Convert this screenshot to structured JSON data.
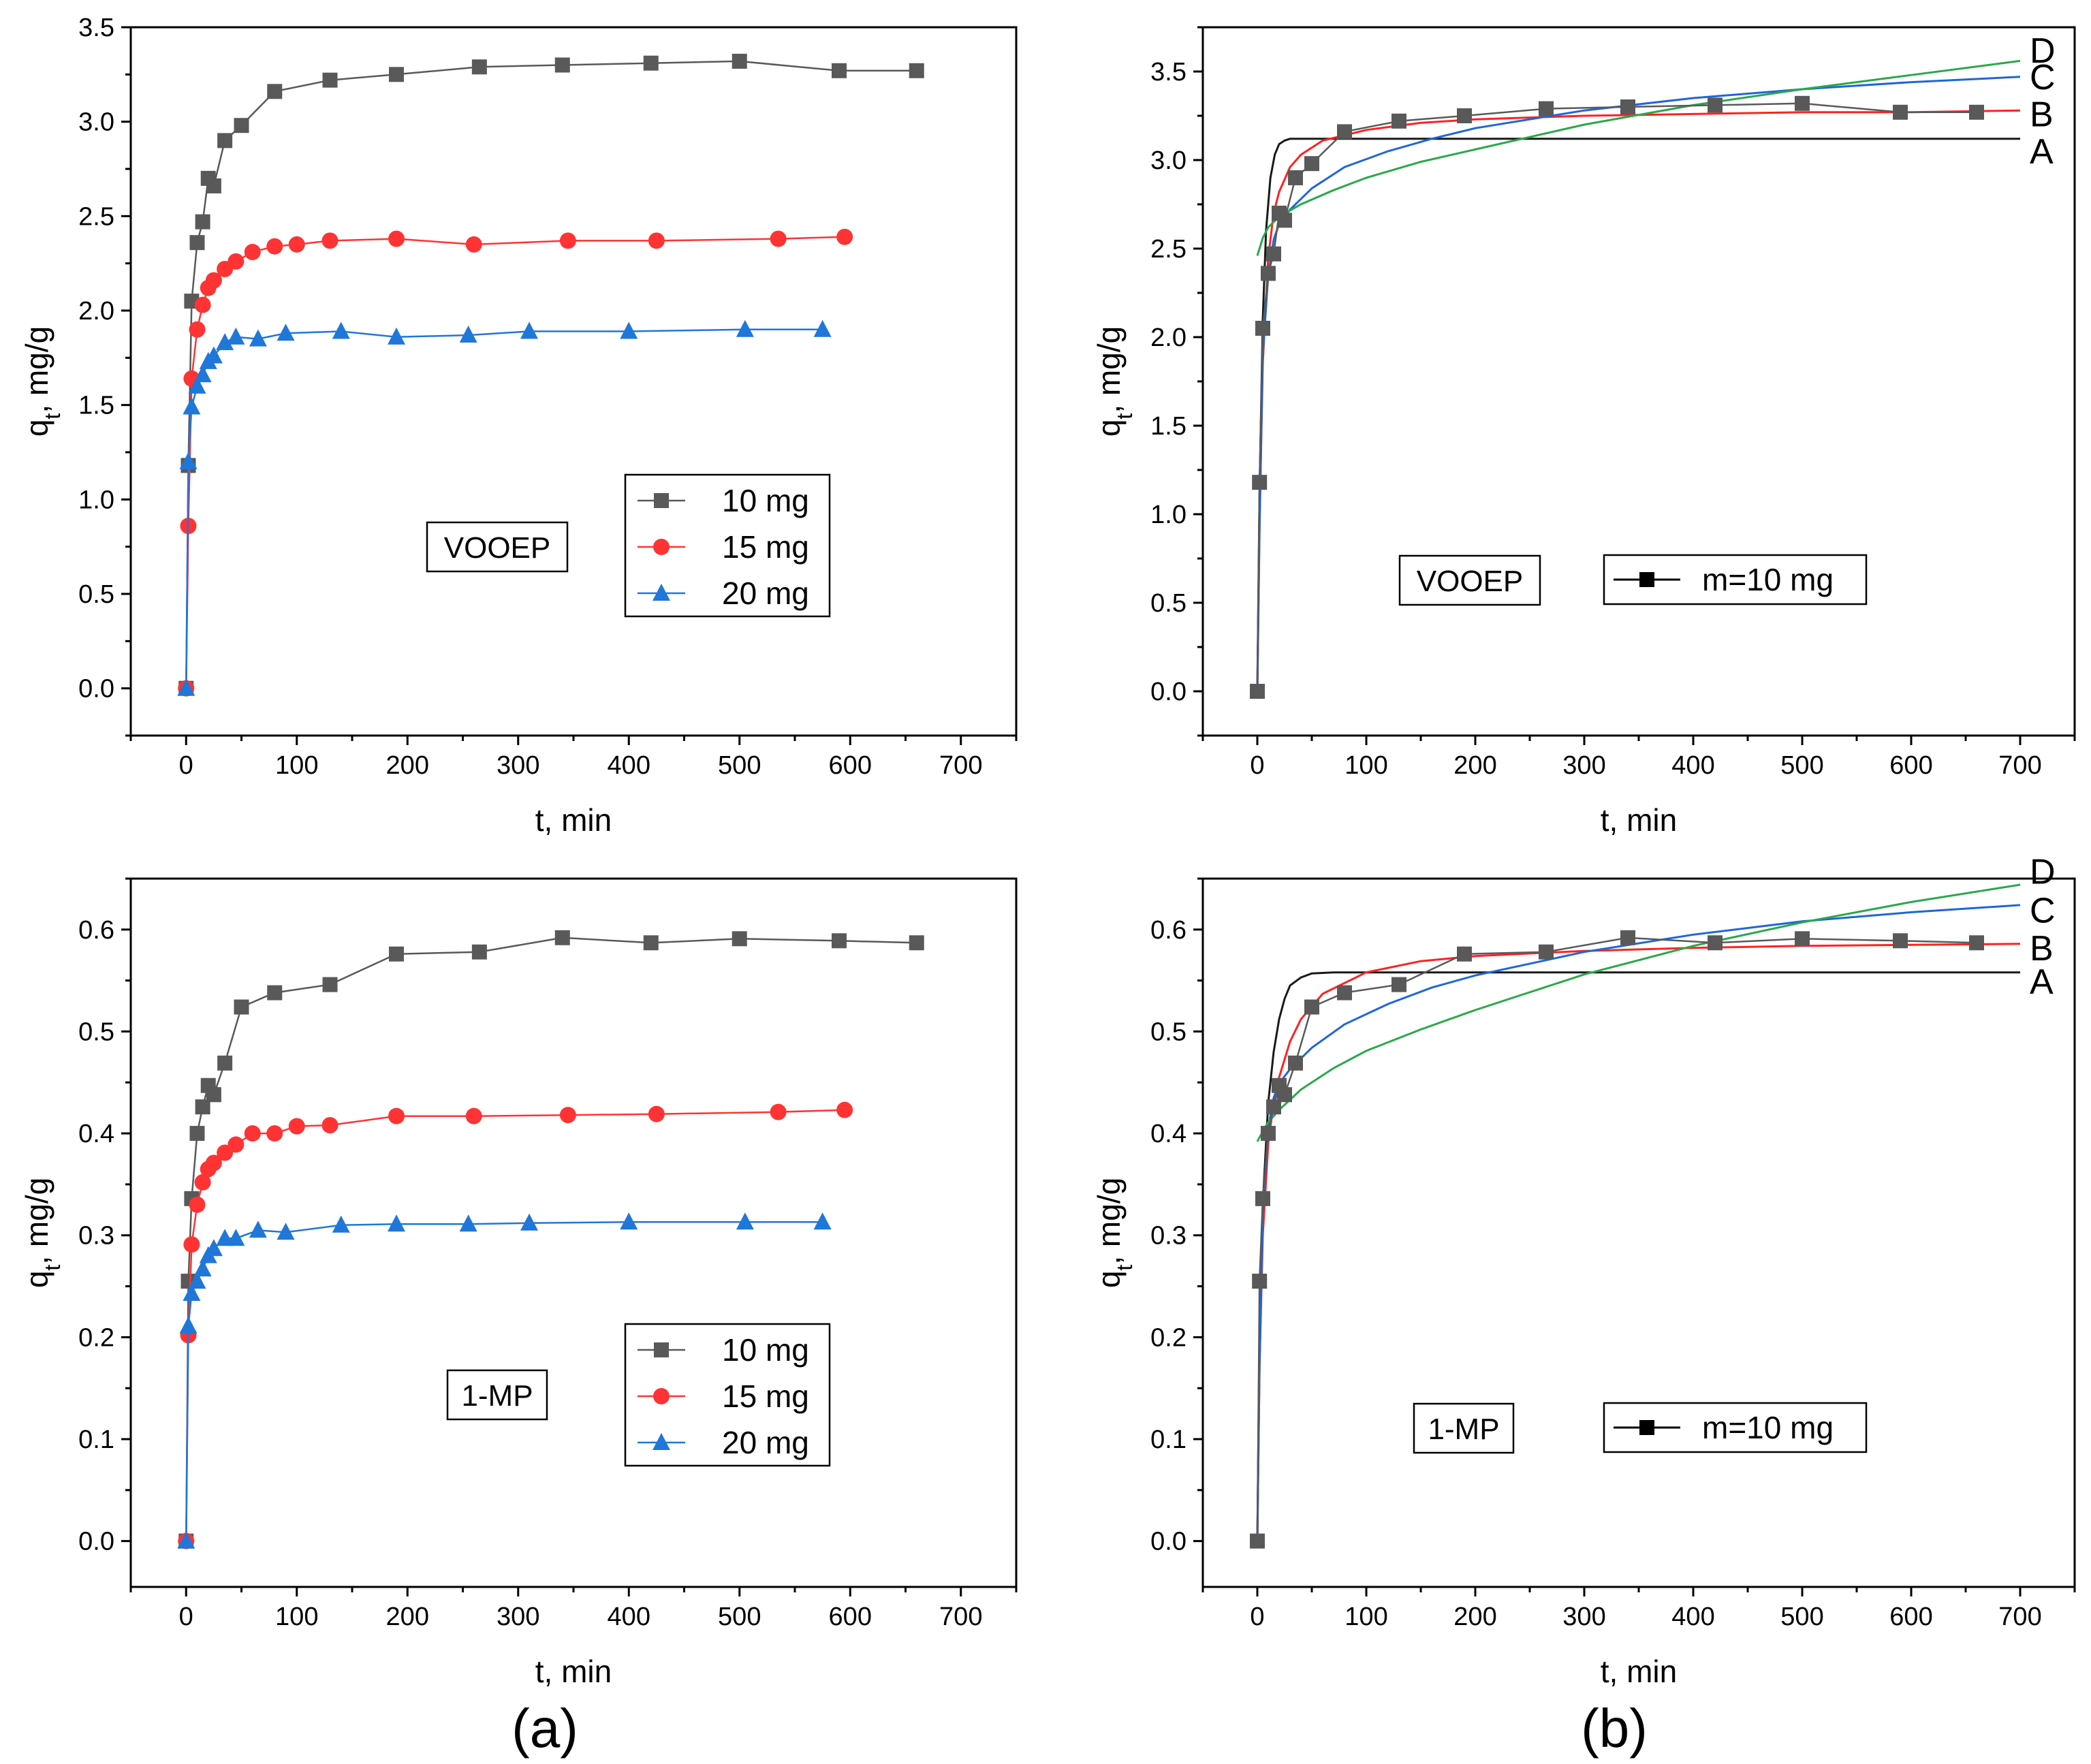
{
  "figure": {
    "panel_labels": [
      "(a)",
      "(b)"
    ]
  },
  "chart_data": [
    {
      "id": "a-top",
      "type": "line",
      "xlabel": "t, min",
      "ylabel_main": "q",
      "ylabel_sub": "t",
      "ylabel_tail": ", mg/g",
      "xlim": [
        -50,
        750
      ],
      "ylim": [
        -0.25,
        3.5
      ],
      "xticks": [
        0,
        100,
        200,
        300,
        400,
        500,
        600,
        700
      ],
      "yticks": [
        0.0,
        0.5,
        1.0,
        1.5,
        2.0,
        2.5,
        3.0,
        3.5
      ],
      "ytick_labels": [
        "0.0",
        "0.5",
        "1.0",
        "1.5",
        "2.0",
        "2.5",
        "3.0",
        "3.5"
      ],
      "annotation": "VOOEP",
      "series": [
        {
          "name": "10 mg",
          "color": "#595959",
          "marker": "square",
          "x": [
            0,
            2,
            5,
            10,
            15,
            20,
            25,
            35,
            50,
            80,
            130,
            190,
            265,
            340,
            420,
            500,
            590,
            660
          ],
          "y": [
            0,
            1.18,
            2.05,
            2.36,
            2.47,
            2.7,
            2.66,
            2.9,
            2.98,
            3.16,
            3.22,
            3.25,
            3.29,
            3.3,
            3.31,
            3.32,
            3.27,
            3.27
          ]
        },
        {
          "name": "15 mg",
          "color": "#ff3333",
          "marker": "circle",
          "x": [
            0,
            2,
            5,
            10,
            15,
            20,
            25,
            35,
            45,
            60,
            80,
            100,
            130,
            190,
            260,
            345,
            425,
            535,
            595
          ],
          "y": [
            0,
            0.86,
            1.64,
            1.9,
            2.03,
            2.12,
            2.16,
            2.22,
            2.26,
            2.31,
            2.34,
            2.35,
            2.37,
            2.38,
            2.35,
            2.37,
            2.37,
            2.38,
            2.39
          ]
        },
        {
          "name": "20 mg",
          "color": "#1f77d9",
          "marker": "triangle",
          "x": [
            0,
            2,
            5,
            10,
            15,
            20,
            25,
            35,
            45,
            65,
            90,
            140,
            190,
            255,
            310,
            400,
            505,
            575
          ],
          "y": [
            0,
            1.2,
            1.49,
            1.6,
            1.66,
            1.73,
            1.76,
            1.83,
            1.86,
            1.85,
            1.88,
            1.89,
            1.86,
            1.87,
            1.89,
            1.89,
            1.9,
            1.9
          ]
        }
      ]
    },
    {
      "id": "b-top",
      "type": "line",
      "xlabel": "t, min",
      "ylabel_main": "q",
      "ylabel_sub": "t",
      "ylabel_tail": ", mg/g",
      "xlim": [
        -50,
        750
      ],
      "ylim": [
        -0.25,
        3.75
      ],
      "xticks": [
        0,
        100,
        200,
        300,
        400,
        500,
        600,
        700
      ],
      "yticks": [
        0.0,
        0.5,
        1.0,
        1.5,
        2.0,
        2.5,
        3.0,
        3.5
      ],
      "ytick_labels": [
        "0.0",
        "0.5",
        "1.0",
        "1.5",
        "2.0",
        "2.5",
        "3.0",
        "3.5"
      ],
      "annotation": "VOOEP",
      "data_series": {
        "name": "m=10 mg",
        "color": "#595959",
        "marker": "square",
        "x": [
          0,
          2,
          5,
          10,
          15,
          20,
          25,
          35,
          50,
          80,
          130,
          190,
          265,
          340,
          420,
          500,
          590,
          660
        ],
        "y": [
          0,
          1.18,
          2.05,
          2.36,
          2.47,
          2.7,
          2.66,
          2.9,
          2.98,
          3.16,
          3.22,
          3.25,
          3.29,
          3.3,
          3.31,
          3.32,
          3.27,
          3.27
        ]
      },
      "model_curves": [
        {
          "label": "A",
          "color": "#1a1a1a",
          "x": [
            0,
            2,
            5,
            8,
            12,
            16,
            20,
            25,
            30,
            40,
            60,
            100,
            200,
            400,
            700
          ],
          "y": [
            0,
            1.1,
            2.1,
            2.6,
            2.9,
            3.03,
            3.09,
            3.11,
            3.12,
            3.12,
            3.12,
            3.12,
            3.12,
            3.12,
            3.12
          ],
          "label_y": 3.05
        },
        {
          "label": "B",
          "color": "#ff2222",
          "x": [
            0,
            2,
            5,
            10,
            15,
            20,
            30,
            40,
            60,
            100,
            150,
            200,
            300,
            400,
            500,
            600,
            700
          ],
          "y": [
            0,
            0.95,
            1.85,
            2.45,
            2.7,
            2.82,
            2.96,
            3.03,
            3.11,
            3.17,
            3.21,
            3.23,
            3.25,
            3.26,
            3.27,
            3.27,
            3.28
          ],
          "label_y": 3.26
        },
        {
          "label": "C",
          "color": "#1f66d9",
          "x": [
            0,
            2,
            5,
            10,
            15,
            20,
            30,
            50,
            80,
            120,
            160,
            200,
            300,
            400,
            500,
            600,
            700
          ],
          "y": [
            0,
            0.9,
            1.9,
            2.35,
            2.55,
            2.64,
            2.72,
            2.84,
            2.96,
            3.05,
            3.12,
            3.18,
            3.28,
            3.35,
            3.4,
            3.44,
            3.47
          ],
          "label_y": 3.47
        },
        {
          "label": "D",
          "color": "#2aa84a",
          "x": [
            0,
            5,
            10,
            20,
            40,
            70,
            100,
            150,
            200,
            300,
            400,
            500,
            600,
            700
          ],
          "y": [
            2.46,
            2.56,
            2.62,
            2.68,
            2.75,
            2.83,
            2.9,
            2.99,
            3.06,
            3.2,
            3.31,
            3.4,
            3.48,
            3.56
          ],
          "label_y": 3.62
        }
      ]
    },
    {
      "id": "a-bottom",
      "type": "line",
      "xlabel": "t, min",
      "ylabel_main": "q",
      "ylabel_sub": "t",
      "ylabel_tail": ", mg/g",
      "xlim": [
        -50,
        750
      ],
      "ylim": [
        -0.045,
        0.65
      ],
      "xticks": [
        0,
        100,
        200,
        300,
        400,
        500,
        600,
        700
      ],
      "yticks": [
        0.0,
        0.1,
        0.2,
        0.3,
        0.4,
        0.5,
        0.6
      ],
      "ytick_labels": [
        "0.0",
        "0.1",
        "0.2",
        "0.3",
        "0.4",
        "0.5",
        "0.6"
      ],
      "annotation": "1-MP",
      "series": [
        {
          "name": "10 mg",
          "color": "#595959",
          "marker": "square",
          "x": [
            0,
            2,
            5,
            10,
            15,
            20,
            25,
            35,
            50,
            80,
            130,
            190,
            265,
            340,
            420,
            500,
            590,
            660
          ],
          "y": [
            0,
            0.255,
            0.336,
            0.4,
            0.426,
            0.447,
            0.438,
            0.469,
            0.524,
            0.538,
            0.546,
            0.576,
            0.578,
            0.592,
            0.587,
            0.591,
            0.589,
            0.587
          ]
        },
        {
          "name": "15 mg",
          "color": "#ff3333",
          "marker": "circle",
          "x": [
            0,
            2,
            5,
            10,
            15,
            20,
            25,
            35,
            45,
            60,
            80,
            100,
            130,
            190,
            260,
            345,
            425,
            535,
            595
          ],
          "y": [
            0,
            0.202,
            0.291,
            0.33,
            0.352,
            0.365,
            0.371,
            0.381,
            0.389,
            0.4,
            0.4,
            0.407,
            0.408,
            0.417,
            0.417,
            0.418,
            0.419,
            0.421,
            0.423
          ]
        },
        {
          "name": "20 mg",
          "color": "#1f77d9",
          "marker": "triangle",
          "x": [
            0,
            2,
            5,
            10,
            15,
            20,
            25,
            35,
            45,
            65,
            90,
            140,
            190,
            255,
            310,
            400,
            505,
            575
          ],
          "y": [
            0,
            0.211,
            0.243,
            0.255,
            0.267,
            0.28,
            0.287,
            0.297,
            0.297,
            0.305,
            0.303,
            0.31,
            0.311,
            0.311,
            0.312,
            0.313,
            0.313,
            0.313
          ]
        }
      ]
    },
    {
      "id": "b-bottom",
      "type": "line",
      "xlabel": "t, min",
      "ylabel_main": "q",
      "ylabel_sub": "t",
      "ylabel_tail": ", mg/g",
      "xlim": [
        -50,
        750
      ],
      "ylim": [
        -0.045,
        0.65
      ],
      "xticks": [
        0,
        100,
        200,
        300,
        400,
        500,
        600,
        700
      ],
      "yticks": [
        0.0,
        0.1,
        0.2,
        0.3,
        0.4,
        0.5,
        0.6
      ],
      "ytick_labels": [
        "0.0",
        "0.1",
        "0.2",
        "0.3",
        "0.4",
        "0.5",
        "0.6"
      ],
      "annotation": "1-MP",
      "data_series": {
        "name": "m=10 mg",
        "color": "#595959",
        "marker": "square",
        "x": [
          0,
          2,
          5,
          10,
          15,
          20,
          25,
          35,
          50,
          80,
          130,
          190,
          265,
          340,
          420,
          500,
          590,
          660
        ],
        "y": [
          0,
          0.255,
          0.336,
          0.4,
          0.426,
          0.447,
          0.438,
          0.469,
          0.524,
          0.538,
          0.546,
          0.576,
          0.578,
          0.592,
          0.587,
          0.591,
          0.589,
          0.587
        ]
      },
      "model_curves": [
        {
          "label": "A",
          "color": "#1a1a1a",
          "x": [
            0,
            2,
            5,
            10,
            15,
            20,
            25,
            30,
            40,
            50,
            70,
            100,
            200,
            400,
            700
          ],
          "y": [
            0,
            0.2,
            0.33,
            0.43,
            0.48,
            0.512,
            0.532,
            0.545,
            0.553,
            0.557,
            0.558,
            0.558,
            0.558,
            0.558,
            0.558
          ],
          "label_y": 0.549
        },
        {
          "label": "B",
          "color": "#ff2222",
          "x": [
            0,
            2,
            5,
            10,
            15,
            20,
            30,
            40,
            60,
            100,
            150,
            200,
            300,
            400,
            500,
            600,
            700
          ],
          "y": [
            0,
            0.17,
            0.3,
            0.39,
            0.43,
            0.455,
            0.49,
            0.512,
            0.537,
            0.558,
            0.569,
            0.574,
            0.579,
            0.582,
            0.584,
            0.585,
            0.586
          ],
          "label_y": 0.582
        },
        {
          "label": "C",
          "color": "#1f66d9",
          "x": [
            0,
            2,
            5,
            10,
            15,
            20,
            30,
            50,
            80,
            120,
            160,
            200,
            300,
            400,
            500,
            600,
            700
          ],
          "y": [
            0,
            0.17,
            0.32,
            0.405,
            0.435,
            0.449,
            0.463,
            0.484,
            0.507,
            0.527,
            0.543,
            0.555,
            0.578,
            0.595,
            0.608,
            0.617,
            0.624
          ],
          "label_y": 0.619
        },
        {
          "label": "D",
          "color": "#2aa84a",
          "x": [
            0,
            5,
            10,
            20,
            40,
            70,
            100,
            150,
            200,
            300,
            400,
            500,
            600,
            700
          ],
          "y": [
            0.392,
            0.402,
            0.411,
            0.423,
            0.443,
            0.464,
            0.481,
            0.502,
            0.521,
            0.556,
            0.584,
            0.607,
            0.627,
            0.644
          ],
          "label_y": 0.657
        }
      ]
    }
  ]
}
